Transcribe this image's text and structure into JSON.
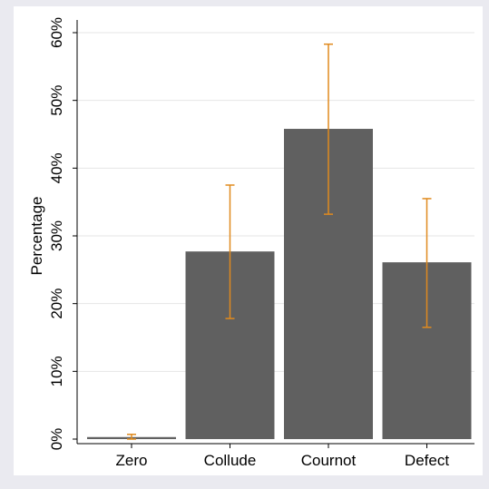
{
  "chart_data": {
    "type": "bar",
    "title": "",
    "xlabel": "",
    "ylabel": "Percentage",
    "categories": [
      "Zero",
      "Collude",
      "Cournot",
      "Defect"
    ],
    "values": [
      0.3,
      27.7,
      45.8,
      26.1
    ],
    "error_bars": {
      "lower": [
        0.0,
        17.8,
        33.2,
        16.5
      ],
      "upper": [
        0.7,
        37.5,
        58.3,
        35.5
      ]
    },
    "ylim": [
      0,
      62
    ],
    "yticks": [
      0,
      10,
      20,
      30,
      40,
      50,
      60
    ],
    "ytick_labels": [
      "0%",
      "10%",
      "20%",
      "30%",
      "40%",
      "50%",
      "60%"
    ],
    "grid": true,
    "colors": {
      "outer_background": "#eaeaf0",
      "plot_background": "#ffffff",
      "bar_fill": "#606060",
      "error_bar": "#e08a1e",
      "grid": "#e6e6e6",
      "axis": "#000000"
    }
  }
}
